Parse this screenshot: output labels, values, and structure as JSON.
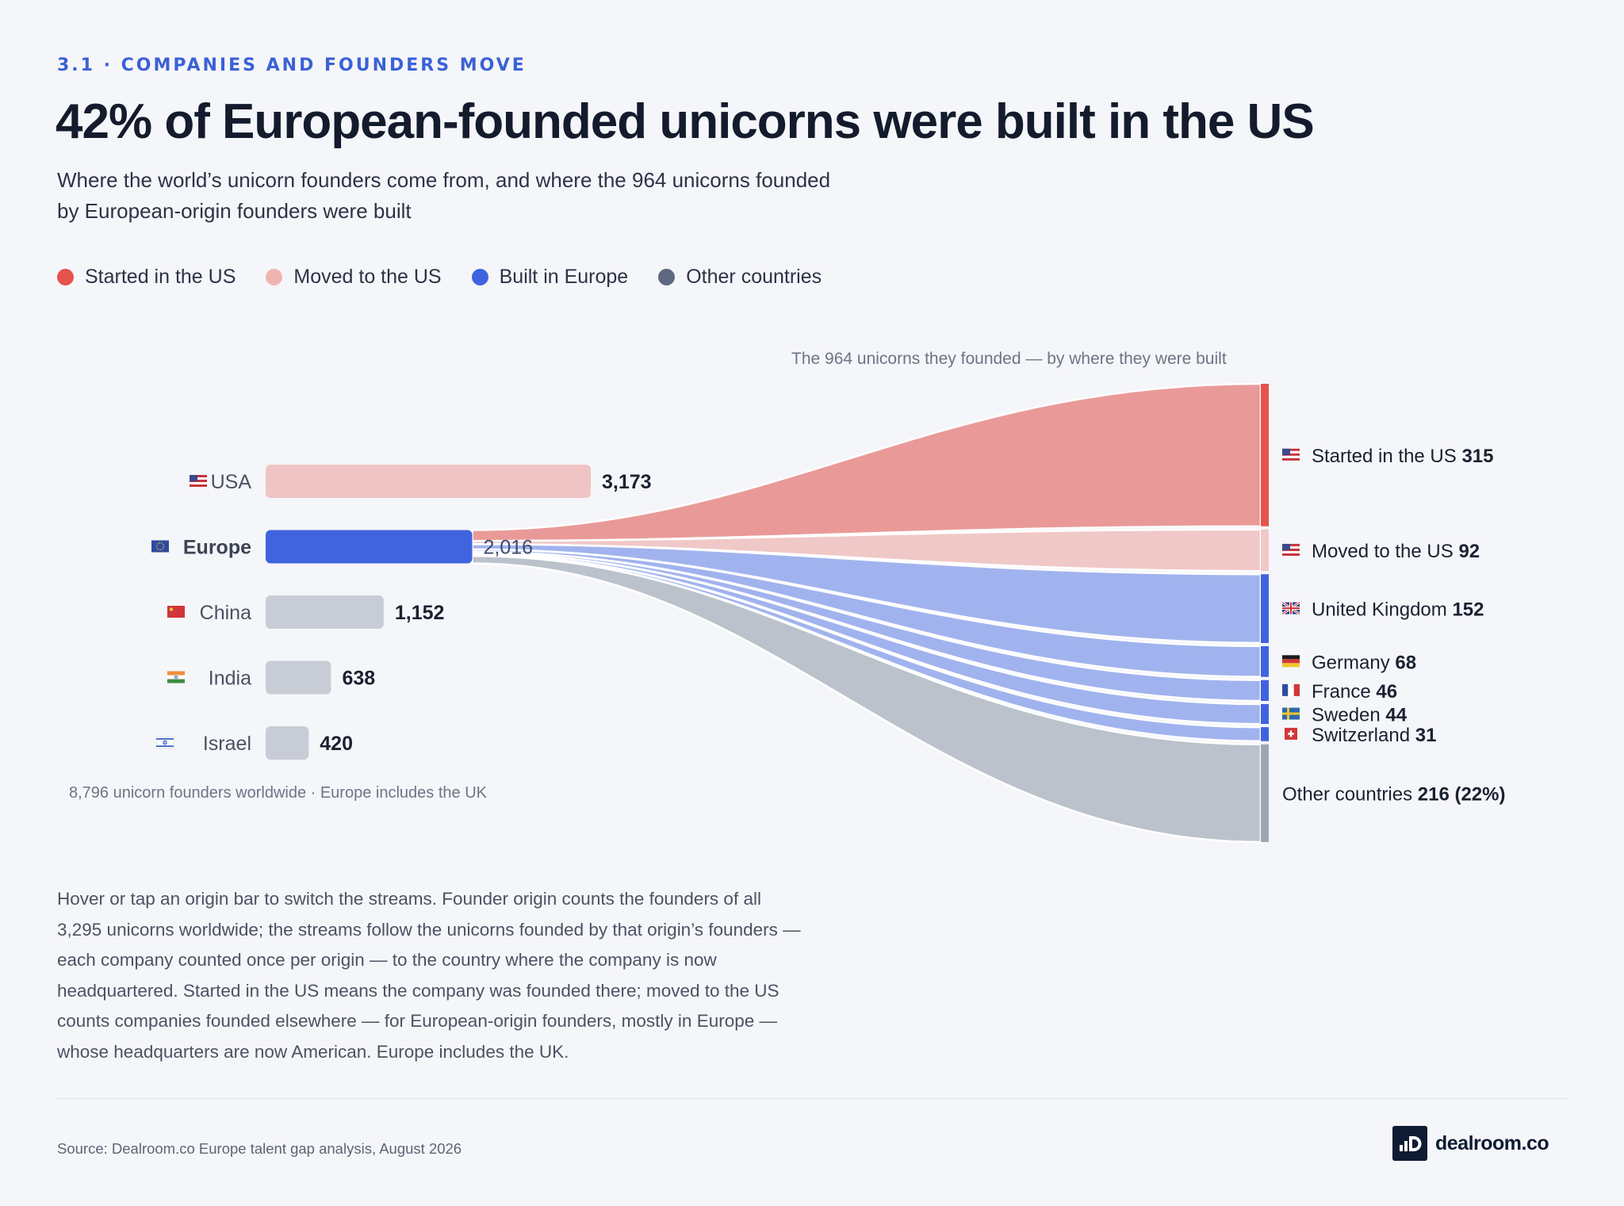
{
  "header": {
    "eyebrow": "3.1 · COMPANIES AND FOUNDERS MOVE",
    "title": "42% of European-founded unicorns were built in the US",
    "subtitle": "Where the world’s unicorn founders come from, and where the 964 unicorns founded by European-origin founders were built"
  },
  "legend": [
    {
      "label": "Started in the US",
      "color": "#e5534b"
    },
    {
      "label": "Moved to the US",
      "color": "#f0b4b0"
    },
    {
      "label": "Built in Europe",
      "color": "#3f63de"
    },
    {
      "label": "Other countries",
      "color": "#5d6880"
    }
  ],
  "chart_note": "The 964 unicorns they founded — by where they were built",
  "footnote": "8,796 unicorn founders worldwide · Europe includes the UK",
  "body_text": "Hover or tap an origin bar to switch the streams. Founder origin counts the founders of all 3,295 unicorns worldwide; the streams follow the unicorns founded by that origin’s founders — each company counted once per origin — to the country where the company is now headquartered. Started in the US means the company was founded there; moved to the US counts companies founded elsewhere — for European-origin founders, mostly in Europe — whose headquarters are now American. Europe includes the UK.",
  "source": "Source: Dealroom.co Europe talent gap analysis, August 2026",
  "brand": {
    "name": "dealroom.co",
    "icon": "dealroom-logo-icon"
  },
  "colors": {
    "accent": "#3b61d6",
    "us_started": "#e5534b",
    "us_moved": "#f0c3c1",
    "europe": "#4063de",
    "other": "#bcc3cc",
    "bar_neutral": "#c8ccd5"
  },
  "chart_data": [
    {
      "type": "bar",
      "orientation": "horizontal",
      "categories": [
        "USA",
        "Europe",
        "China",
        "India",
        "Israel"
      ],
      "flags": [
        "flag-us-icon",
        "flag-eu-icon",
        "flag-cn-icon",
        "flag-in-icon",
        "flag-il-icon"
      ],
      "values": [
        3173,
        2016,
        1152,
        638,
        420
      ],
      "value_labels": [
        "3,173",
        "2,016",
        "1,152",
        "638",
        "420"
      ],
      "highlighted": "Europe"
    },
    {
      "type": "sankey",
      "source": "Europe",
      "total": 964,
      "flows": [
        {
          "label": "Started in the US",
          "value": 315,
          "value_label": "315",
          "group": "us",
          "flag": "flag-us-icon"
        },
        {
          "label": "Moved to the US",
          "value": 92,
          "value_label": "92",
          "group": "us-moved",
          "flag": "flag-us-icon"
        },
        {
          "label": "United Kingdom",
          "value": 152,
          "value_label": "152",
          "group": "europe",
          "flag": "flag-uk-icon"
        },
        {
          "label": "Germany",
          "value": 68,
          "value_label": "68",
          "group": "europe",
          "flag": "flag-de-icon"
        },
        {
          "label": "France",
          "value": 46,
          "value_label": "46",
          "group": "europe",
          "flag": "flag-fr-icon"
        },
        {
          "label": "Sweden",
          "value": 44,
          "value_label": "44",
          "group": "europe",
          "flag": "flag-se-icon"
        },
        {
          "label": "Switzerland",
          "value": 31,
          "value_label": "31",
          "group": "europe",
          "flag": "flag-ch-icon"
        },
        {
          "label": "Other countries",
          "value": 216,
          "value_label": "216 (22%)",
          "group": "other",
          "flag": ""
        }
      ]
    }
  ]
}
